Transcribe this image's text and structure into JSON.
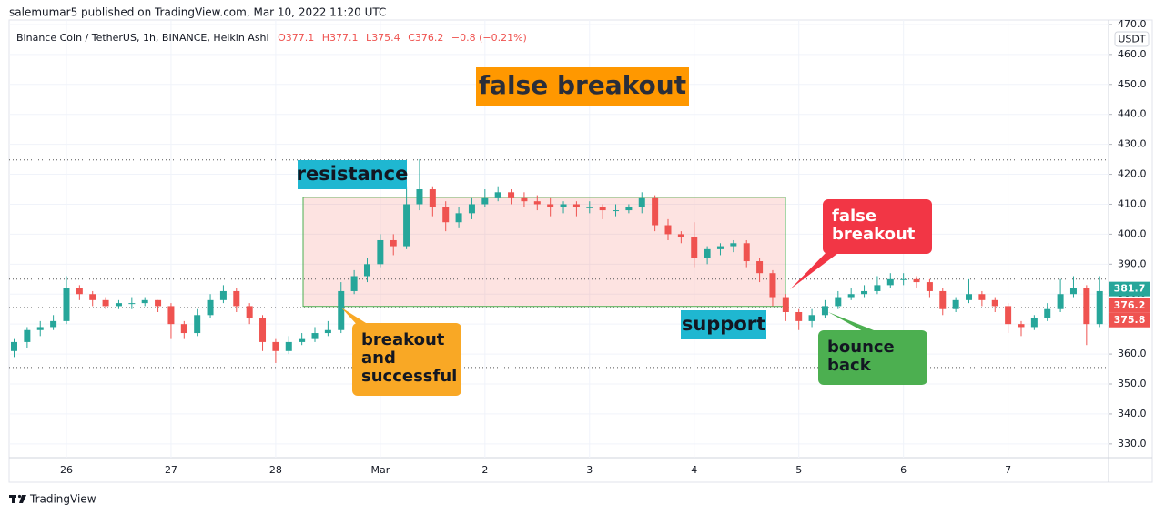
{
  "publisher_line": "salemumar5 published on TradingView.com, Mar 10, 2022 11:20 UTC",
  "footer": "TradingView",
  "chart_data": {
    "type": "candlestick",
    "legend": {
      "name": "Binance Coin / TetherUS, 1h, BINANCE, Heikin Ashi",
      "ohlc": [
        {
          "label": "O",
          "value": 377.1
        },
        {
          "label": "H",
          "value": 377.1
        },
        {
          "label": "L",
          "value": 375.4
        },
        {
          "label": "C",
          "value": 376.2
        }
      ],
      "change": "−0.8 (−0.21%)"
    },
    "currency": "USDT",
    "categories": [
      null,
      null,
      null,
      null,
      "26",
      null,
      null,
      null,
      null,
      null,
      null,
      null,
      "27",
      null,
      null,
      null,
      null,
      null,
      null,
      null,
      "28",
      null,
      null,
      null,
      null,
      null,
      null,
      null,
      "Mar",
      null,
      null,
      null,
      null,
      null,
      null,
      null,
      "2",
      null,
      null,
      null,
      null,
      null,
      null,
      null,
      "3",
      null,
      null,
      null,
      null,
      null,
      null,
      null,
      "4",
      null,
      null,
      null,
      null,
      null,
      null,
      null,
      "5",
      null,
      null,
      null,
      null,
      null,
      null,
      null,
      "6",
      null,
      null,
      null,
      null,
      null,
      null,
      null,
      "7",
      null,
      null,
      null,
      null,
      null,
      null,
      null
    ],
    "series": [
      {
        "up_color": "#26a69a",
        "down_color": "#ef5350",
        "open": [
          361,
          364,
          368,
          369,
          371,
          382,
          380,
          378,
          376,
          377,
          377,
          378,
          376,
          370,
          367,
          373,
          378,
          381,
          376,
          372,
          364,
          361,
          364,
          365,
          367,
          368,
          381,
          386,
          390,
          398,
          396,
          410,
          415,
          409,
          404,
          407,
          410,
          412,
          414,
          412,
          411,
          410,
          409,
          410,
          409,
          409,
          408,
          408,
          409,
          412,
          403,
          400,
          399,
          392,
          395,
          396,
          397,
          391,
          387,
          379,
          374,
          371,
          373,
          376,
          379,
          380,
          381,
          383,
          385,
          385,
          384,
          381,
          375,
          378,
          380,
          378,
          376,
          370,
          369,
          372,
          375,
          380,
          382,
          370
        ],
        "high": [
          365,
          369,
          371,
          373,
          386,
          383,
          381,
          379,
          378,
          379,
          379,
          378,
          377,
          371,
          375,
          380,
          383,
          382,
          377,
          373,
          365,
          366,
          367,
          369,
          371,
          384,
          388,
          392,
          400,
          400,
          416,
          425,
          416,
          411,
          409,
          412,
          415,
          416,
          415,
          414,
          413,
          412,
          411,
          411,
          411,
          410,
          410,
          410,
          414,
          413,
          405,
          401,
          404,
          396,
          397,
          398,
          398,
          392,
          388,
          380,
          375,
          375,
          378,
          381,
          382,
          383,
          386,
          387,
          387,
          386,
          385,
          382,
          379,
          385,
          381,
          379,
          377,
          371,
          373,
          377,
          385,
          386,
          383,
          386
        ],
        "low": [
          359,
          362,
          366,
          368,
          370,
          378,
          376,
          375,
          375,
          375,
          376,
          374,
          365,
          365,
          366,
          372,
          377,
          374,
          370,
          361,
          357,
          360,
          363,
          364,
          366,
          367,
          380,
          384,
          389,
          393,
          395,
          408,
          406,
          401,
          402,
          405,
          409,
          411,
          410,
          409,
          408,
          406,
          407,
          406,
          407,
          405,
          406,
          407,
          407,
          401,
          398,
          397,
          389,
          390,
          393,
          394,
          389,
          384,
          376,
          371,
          368,
          369,
          372,
          375,
          378,
          379,
          380,
          382,
          383,
          382,
          379,
          373,
          374,
          377,
          376,
          374,
          367,
          366,
          368,
          371,
          374,
          379,
          363,
          369
        ],
        "close": [
          364,
          368,
          369,
          371,
          382,
          380,
          378,
          376,
          377,
          377,
          378,
          376,
          370,
          367,
          373,
          378,
          381,
          376,
          372,
          364,
          361,
          364,
          365,
          367,
          368,
          381,
          386,
          390,
          398,
          396,
          410,
          415,
          409,
          404,
          407,
          410,
          412,
          414,
          412,
          411,
          410,
          409,
          410,
          409,
          409,
          408,
          408,
          409,
          412,
          403,
          400,
          399,
          392,
          395,
          396,
          397,
          391,
          387,
          379,
          374,
          371,
          373,
          376,
          379,
          380,
          381,
          383,
          385,
          385,
          384,
          381,
          375,
          378,
          380,
          378,
          376,
          370,
          369,
          372,
          375,
          380,
          382,
          370,
          381
        ]
      }
    ],
    "ylim": [
      325.4,
      471.5
    ],
    "yticks": [
      {
        "value": 330,
        "label": "330.0"
      },
      {
        "value": 340,
        "label": "340.0"
      },
      {
        "value": 350,
        "label": "350.0"
      },
      {
        "value": 360,
        "label": "360.0"
      },
      {
        "value": 370,
        "label": "370.0"
      },
      {
        "value": 380,
        "label": "380.0"
      },
      {
        "value": 390,
        "label": "390.0"
      },
      {
        "value": 400,
        "label": "400.0"
      },
      {
        "value": 410,
        "label": "410.0"
      },
      {
        "value": 420,
        "label": "420.0"
      },
      {
        "value": 430,
        "label": "430.0"
      },
      {
        "value": 440,
        "label": "440.0"
      },
      {
        "value": 450,
        "label": "450.0"
      },
      {
        "value": 460,
        "label": "460.0"
      },
      {
        "value": 470,
        "label": "470.0"
      }
    ],
    "grid": true,
    "levels": [
      424.8,
      385,
      375.5,
      355.5
    ],
    "zone": [
      375.9,
      412.3
    ],
    "price_tags": [
      {
        "value": 381.7,
        "color": "#26a69a"
      },
      {
        "value": 376.2,
        "color": "#ef5350"
      },
      {
        "value": 375.8,
        "color": "#ef5350"
      }
    ],
    "annotations": {
      "title": [
        "false breakout"
      ],
      "resistance": [
        "resistance"
      ],
      "support": [
        "support"
      ],
      "breakout": [
        "breakout",
        "and",
        "successful"
      ],
      "false_breakout": [
        "false",
        "breakout"
      ],
      "bounce": [
        "bounce",
        "back"
      ]
    }
  }
}
